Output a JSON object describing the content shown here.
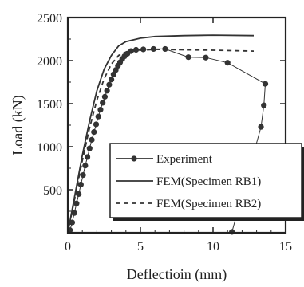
{
  "chart_data": {
    "type": "line",
    "xlabel": "Deflectioin (mm)",
    "ylabel": "Load (kN)",
    "xlim": [
      0,
      15
    ],
    "ylim": [
      0,
      2500
    ],
    "xticks": [
      0,
      5,
      10,
      15
    ],
    "yticks": [
      500,
      1000,
      1500,
      2000,
      2500
    ],
    "grid": false,
    "legend_position": "bottom-right",
    "series": [
      {
        "name": "Experiment",
        "style": "solid-dots",
        "color": "#333333",
        "points": [
          [
            0.15,
            30
          ],
          [
            0.3,
            120
          ],
          [
            0.45,
            230
          ],
          [
            0.6,
            340
          ],
          [
            0.75,
            450
          ],
          [
            0.9,
            560
          ],
          [
            1.05,
            670
          ],
          [
            1.2,
            780
          ],
          [
            1.35,
            880
          ],
          [
            1.5,
            980
          ],
          [
            1.65,
            1080
          ],
          [
            1.8,
            1170
          ],
          [
            1.95,
            1260
          ],
          [
            2.1,
            1350
          ],
          [
            2.25,
            1430
          ],
          [
            2.4,
            1510
          ],
          [
            2.55,
            1580
          ],
          [
            2.7,
            1650
          ],
          [
            2.85,
            1720
          ],
          [
            3.0,
            1780
          ],
          [
            3.15,
            1840
          ],
          [
            3.3,
            1890
          ],
          [
            3.45,
            1940
          ],
          [
            3.6,
            1980
          ],
          [
            3.75,
            2020
          ],
          [
            3.9,
            2050
          ],
          [
            4.1,
            2080
          ],
          [
            4.35,
            2110
          ],
          [
            4.7,
            2125
          ],
          [
            5.2,
            2130
          ],
          [
            5.9,
            2135
          ],
          [
            6.7,
            2135
          ],
          [
            8.3,
            2040
          ],
          [
            9.5,
            2035
          ],
          [
            11.0,
            1975
          ],
          [
            13.6,
            1730
          ],
          [
            13.5,
            1480
          ],
          [
            13.3,
            1230
          ],
          [
            11.3,
            10
          ]
        ]
      },
      {
        "name": "FEM(Specimen RB1)",
        "style": "solid",
        "color": "#333333",
        "points": [
          [
            0,
            0
          ],
          [
            0.5,
            450
          ],
          [
            1.0,
            900
          ],
          [
            1.5,
            1300
          ],
          [
            2.0,
            1650
          ],
          [
            2.5,
            1900
          ],
          [
            3.0,
            2060
          ],
          [
            3.5,
            2170
          ],
          [
            4.0,
            2220
          ],
          [
            5.0,
            2260
          ],
          [
            6.0,
            2280
          ],
          [
            8.0,
            2290
          ],
          [
            10.0,
            2295
          ],
          [
            12.8,
            2290
          ]
        ]
      },
      {
        "name": "FEM(Specimen RB2)",
        "style": "dashed",
        "color": "#333333",
        "points": [
          [
            0,
            0
          ],
          [
            0.5,
            420
          ],
          [
            1.0,
            840
          ],
          [
            1.5,
            1220
          ],
          [
            2.0,
            1540
          ],
          [
            2.5,
            1790
          ],
          [
            3.0,
            1960
          ],
          [
            3.5,
            2060
          ],
          [
            4.0,
            2100
          ],
          [
            5.0,
            2120
          ],
          [
            6.0,
            2130
          ],
          [
            8.0,
            2125
          ],
          [
            10.0,
            2120
          ],
          [
            12.8,
            2110
          ]
        ]
      }
    ]
  }
}
